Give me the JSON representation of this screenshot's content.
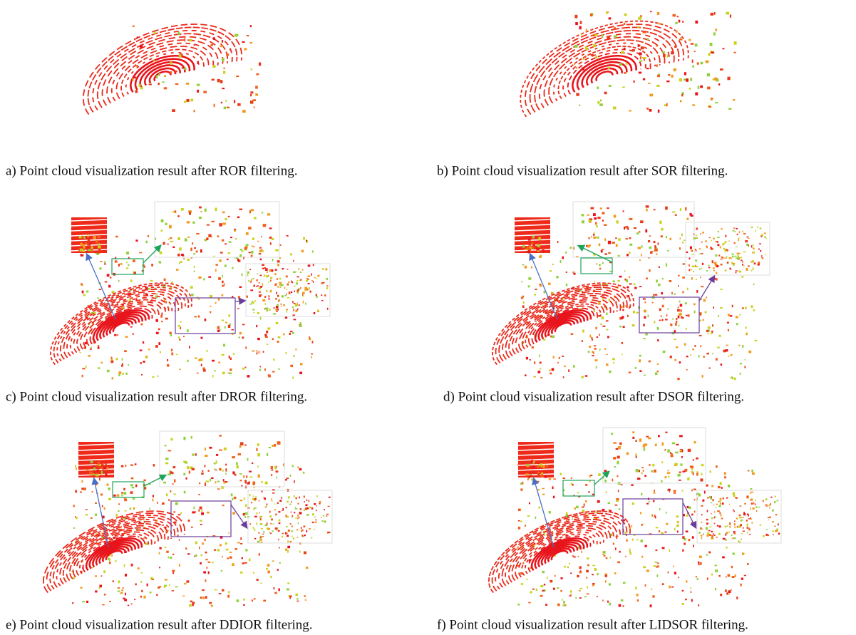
{
  "figure": {
    "panels": [
      {
        "caption": "a) Point cloud visualization result after ROR filtering."
      },
      {
        "caption": "b) Point cloud visualization result after SOR filtering."
      },
      {
        "caption": "c) Point cloud visualization result after DROR filtering."
      },
      {
        "caption": "d) Point cloud visualization result after DSOR filtering."
      },
      {
        "caption": "e) Point cloud visualization result after DDIOR filtering."
      },
      {
        "caption": "f) Point cloud visualization result after LIDSOR filtering."
      }
    ]
  }
}
